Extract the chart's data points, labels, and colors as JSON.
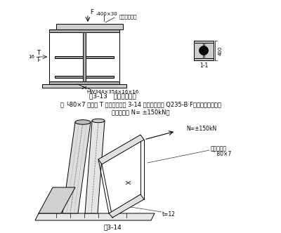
{
  "title_fig313": "图3-13   柱顶承压节点",
  "title_fig314": "图3-14",
  "text_label_400x30": "-400×30",
  "text_label_top": "上端刨平顶紧",
  "text_label_HW": "HW344×354×16×16",
  "text_label_1_1": "1-1",
  "text_label_16": "16",
  "text_label_T1": "T",
  "text_label_T2": "T-",
  "text_label_400": "400",
  "text_label_F": "F",
  "text_body": "钢 └80×7 组成的 T 形截面，如图 3-14 所示。钢材为 Q235-B·F，其斜撑所受的轴\n心力设计值 N= ±150kN。",
  "text_N": "N=±150kN",
  "text_renyizi": "人字形腹杆",
  "text_T80x7": "´' 80×7",
  "text_t12": "t=12",
  "bg_color": "#ffffff",
  "line_color": "#000000",
  "gray_color": "#888888"
}
